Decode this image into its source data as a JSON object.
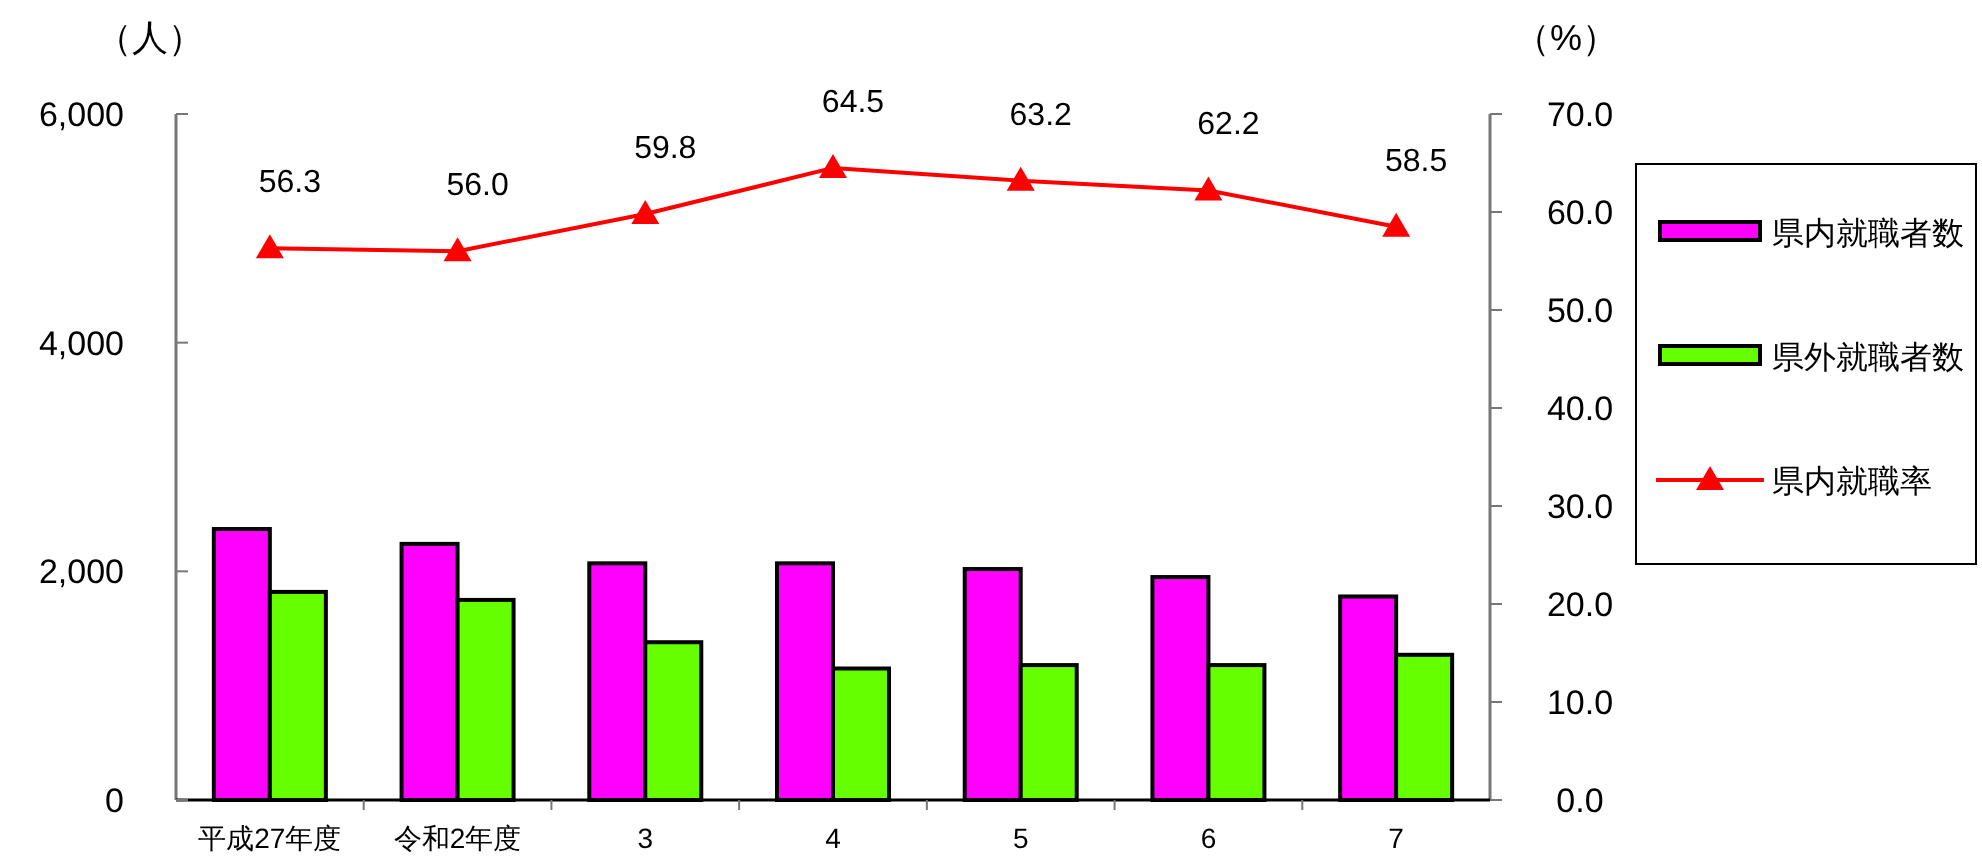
{
  "chart_data": {
    "type": "bar",
    "ylabel": "（人）",
    "y2label": "（%）",
    "categories": [
      "平成27年度",
      "令和2年度",
      "3",
      "4",
      "5",
      "6",
      "7"
    ],
    "ylim": [
      0,
      6000
    ],
    "yticks": [
      {
        "value": 0,
        "label": "0"
      },
      {
        "value": 2000,
        "label": "2,000"
      },
      {
        "value": 4000,
        "label": "4,000"
      },
      {
        "value": 6000,
        "label": "6,000"
      }
    ],
    "y2lim": [
      0,
      70
    ],
    "y2ticks": [
      {
        "value": 0,
        "label": "0.0"
      },
      {
        "value": 10,
        "label": "10.0"
      },
      {
        "value": 20,
        "label": "20.0"
      },
      {
        "value": 30,
        "label": "30.0"
      },
      {
        "value": 40,
        "label": "40.0"
      },
      {
        "value": 50,
        "label": "50.0"
      },
      {
        "value": 60,
        "label": "60.0"
      },
      {
        "value": 70,
        "label": "70.0"
      }
    ],
    "legend": "right",
    "grid": false,
    "series": [
      {
        "name": "県内就職者数",
        "color": "#ff00ff",
        "values": [
          2370,
          2240,
          2070,
          2070,
          2020,
          1950,
          1780
        ]
      },
      {
        "name": "県外就職者数",
        "color": "#66ff00",
        "values": [
          1820,
          1750,
          1380,
          1150,
          1180,
          1180,
          1270
        ]
      },
      {
        "name": "県内就職率",
        "type": "line",
        "axis": "y2",
        "color": "#ff0000",
        "marker": "triangle",
        "values": [
          56.3,
          56.0,
          59.8,
          64.5,
          63.2,
          62.2,
          58.5
        ],
        "value_labels": [
          "56.3",
          "56.0",
          "59.8",
          "64.5",
          "63.2",
          "62.2",
          "58.5"
        ]
      }
    ]
  }
}
